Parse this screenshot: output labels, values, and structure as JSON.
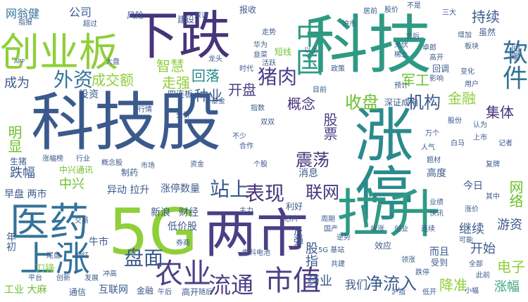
{
  "words": {
    "w01": "科技股",
    "w02": "涨停",
    "w03": "科技",
    "w04": "5G",
    "w05": "下跌",
    "w06": "拉升",
    "w07": "两市",
    "w08": "创业板",
    "w09": "医药",
    "w10": "上涨",
    "w11": "中国",
    "w12": "软件",
    "w13": "农业",
    "w14": "市值",
    "w15": "盘面",
    "w16": "流通",
    "w17": "表现",
    "w18": "站上",
    "w19": "网络",
    "w20": "净流入",
    "w21": "外资",
    "w22": "猪肉",
    "w23": "震荡",
    "w24": "联网",
    "w25": "收盘",
    "w26": "机构",
    "w27": "集体",
    "w28": "金融",
    "w29": "持续",
    "w30": "开盘",
    "w31": "回落",
    "w32": "种业",
    "w33": "智慧",
    "w34": "成交额",
    "w35": "走强",
    "w36": "概念",
    "w37": "军工",
    "w38": "中兴",
    "w39": "明显",
    "w40": "跌幅",
    "w41": "股票",
    "w42": "我们",
    "w43": "药业",
    "w44": "降准",
    "w45": "涨幅",
    "w46": "电子",
    "w47": "游资",
    "w48": "开始",
    "w49": "继续",
    "w50": "股指",
    "w51": "成为",
    "w52": "网翁健",
    "w53": "公司",
    "w54": "风险",
    "w55": "建设",
    "w56": "报收",
    "w57": "数量",
    "w58": "涨停数量",
    "w59": "消息",
    "w60": "高度",
    "w61": "财经",
    "w62": "新浪",
    "w63": "低价股",
    "w64": "反弹",
    "w65": "今日",
    "w66": "早盘 两市",
    "w67": "异动 拉升",
    "w68": "中兴通讯",
    "w69": "牛市",
    "w70": "互联网",
    "w71": "工业 大麻",
    "w72": "通信",
    "w73": "回暖",
    "w74": "深证成指",
    "w75": "投资",
    "w76": "四连板",
    "w77": "生猪",
    "w78": "制药",
    "w79": "利好",
    "w80": "年初",
    "w81": "短线",
    "w82": "高开",
    "w83": "而且",
    "w84": "影响",
    "w85": "板块",
    "w86": "卓郎",
    "w87": "以上",
    "w88": "沪市",
    "w89": "回调",
    "w90": "虽然",
    "w91": "指数",
    "w92": "基金",
    "w93": "分析",
    "w94": "行情",
    "w95": "个股",
    "w96": "资金",
    "w97": "市场",
    "w98": "概念股",
    "w99": "行业",
    "w100": "涨幅榜",
    "w101": "华为",
    "w102": "韭菜",
    "w103": "龙头",
    "w104": "大盘",
    "w105": "券商",
    "w106": "主力",
    "w107": "芯片",
    "w108": "周期",
    "w109": "国产",
    "w110": "光伏",
    "w111": "稀土",
    "w112": "白马",
    "w113": "题材",
    "w114": "复牌",
    "w115": "涨价",
    "w116": "业绩",
    "w117": "快讯",
    "w118": "交易",
    "w119": "时代",
    "w120": "发展",
    "w121": "创新",
    "w122": "平台",
    "w123": "政策",
    "w124": "效应",
    "w125": "共建",
    "w126": "5G 基站",
    "w127": "燃料电池",
    "w128": "受到",
    "w129": "刀锋",
    "w130": "金融",
    "w131": "随后",
    "w132": "全部",
    "w133": "此前",
    "w134": "其中",
    "w135": "不少",
    "w136": "双双",
    "w137": "合作",
    "w138": "可能",
    "w139": "万个",
    "w140": "人气",
    "w141": "活跃",
    "w142": "走势",
    "w143": "超过",
    "w144": "APP",
    "w145": "指报",
    "w146": "深证",
    "w147": "居前",
    "w148": "股价",
    "w149": "不是",
    "w150": "三大",
    "w151": "之后",
    "w152": "增加",
    "w153": "高开",
    "w154": "目前",
    "w155": "变化",
    "w156": "用户",
    "w157": "预计",
    "w158": "认为",
    "w159": "上市",
    "w160": "股份",
    "w161": "记者",
    "w162": "连续",
    "w163": "创业",
    "w164": "收涨",
    "w165": "逆势",
    "w166": "领涨",
    "w167": "跌停",
    "w168": "小幅",
    "w169": "低开",
    "w170": "沪指",
    "w171": "午后",
    "w172": "尾盘",
    "w173": "翻红",
    "w174": "冲高"
  }
}
